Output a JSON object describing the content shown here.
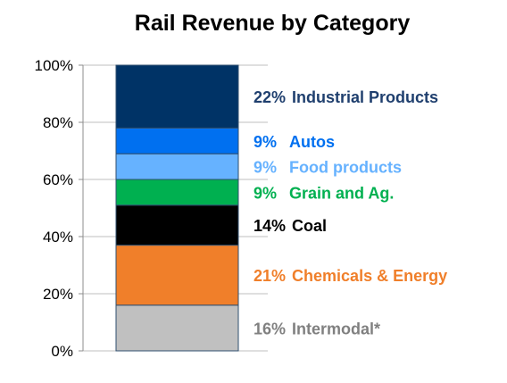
{
  "chart_data": {
    "type": "bar",
    "stacked": true,
    "title": "Rail Revenue by Category",
    "categories": [
      ""
    ],
    "ylim": [
      0,
      100
    ],
    "y_ticks": [
      0,
      20,
      40,
      60,
      80,
      100
    ],
    "y_tick_labels": [
      "0%",
      "20%",
      "40%",
      "60%",
      "80%",
      "100%"
    ],
    "grid": true,
    "series": [
      {
        "name": "Intermodal*",
        "values": [
          16
        ],
        "color": "#C0C0C0",
        "label_pct": "16%",
        "label_name": "Intermodal*",
        "label_color": "#808080"
      },
      {
        "name": "Chemicals & Energy",
        "values": [
          21
        ],
        "color": "#F07F2A",
        "label_pct": "21%",
        "label_name": "Chemicals & Energy",
        "label_color": "#F07F2A"
      },
      {
        "name": "Coal",
        "values": [
          14
        ],
        "color": "#000000",
        "label_pct": "14%",
        "label_name": "Coal",
        "label_color": "#000000"
      },
      {
        "name": "Grain and Ag.",
        "values": [
          9
        ],
        "color": "#00B050",
        "label_pct": "9%",
        "label_name": "Grain and Ag.",
        "label_color": "#00B050"
      },
      {
        "name": "Food products",
        "values": [
          9
        ],
        "color": "#66B2FF",
        "label_pct": "9%",
        "label_name": "Food products",
        "label_color": "#66B2FF"
      },
      {
        "name": "Autos",
        "values": [
          9
        ],
        "color": "#0070F0",
        "label_pct": "9%",
        "label_name": "Autos",
        "label_color": "#0070F0"
      },
      {
        "name": "Industrial Products",
        "values": [
          22
        ],
        "color": "#003366",
        "label_pct": "22%",
        "label_name": "Industrial Products",
        "label_color": "#1F3F6E"
      }
    ]
  }
}
